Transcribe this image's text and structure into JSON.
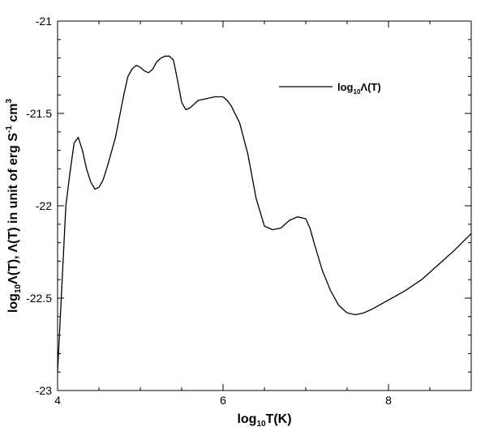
{
  "chart_data": {
    "type": "line",
    "xlabel": "log10T(K)",
    "ylabel": "log10Λ(T), Λ(T) in unit of erg S-1 cm3",
    "xlim": [
      4,
      9
    ],
    "ylim": [
      -23,
      -21
    ],
    "x_ticks": [
      "4",
      "6",
      "8"
    ],
    "y_ticks": [
      "-21",
      "-21.5",
      "-22",
      "-22.5",
      "-23"
    ],
    "grid": false,
    "legend_position": "top-right",
    "series": [
      {
        "name": "log10Λ(T)",
        "color": "#000000",
        "x": [
          4.0,
          4.05,
          4.1,
          4.15,
          4.2,
          4.25,
          4.3,
          4.35,
          4.4,
          4.45,
          4.5,
          4.55,
          4.6,
          4.7,
          4.8,
          4.85,
          4.9,
          4.95,
          5.0,
          5.05,
          5.1,
          5.15,
          5.2,
          5.25,
          5.3,
          5.35,
          5.4,
          5.45,
          5.5,
          5.55,
          5.6,
          5.65,
          5.7,
          5.8,
          5.9,
          6.0,
          6.05,
          6.1,
          6.2,
          6.3,
          6.4,
          6.5,
          6.6,
          6.7,
          6.8,
          6.9,
          7.0,
          7.05,
          7.1,
          7.2,
          7.3,
          7.4,
          7.5,
          7.6,
          7.7,
          7.8,
          8.0,
          8.2,
          8.4,
          8.6,
          8.8,
          9.0
        ],
        "y": [
          -22.9,
          -22.45,
          -22.0,
          -21.82,
          -21.66,
          -21.63,
          -21.7,
          -21.8,
          -21.87,
          -21.91,
          -21.9,
          -21.86,
          -21.79,
          -21.63,
          -21.4,
          -21.3,
          -21.26,
          -21.24,
          -21.25,
          -21.27,
          -21.28,
          -21.26,
          -21.22,
          -21.2,
          -21.19,
          -21.19,
          -21.21,
          -21.32,
          -21.44,
          -21.48,
          -21.47,
          -21.45,
          -21.43,
          -21.42,
          -21.41,
          -21.41,
          -21.43,
          -21.46,
          -21.55,
          -21.72,
          -21.96,
          -22.11,
          -22.13,
          -22.12,
          -22.08,
          -22.06,
          -22.07,
          -22.12,
          -22.2,
          -22.35,
          -22.46,
          -22.54,
          -22.58,
          -22.59,
          -22.58,
          -22.56,
          -22.51,
          -22.46,
          -22.4,
          -22.32,
          -22.24,
          -22.15
        ]
      }
    ]
  }
}
